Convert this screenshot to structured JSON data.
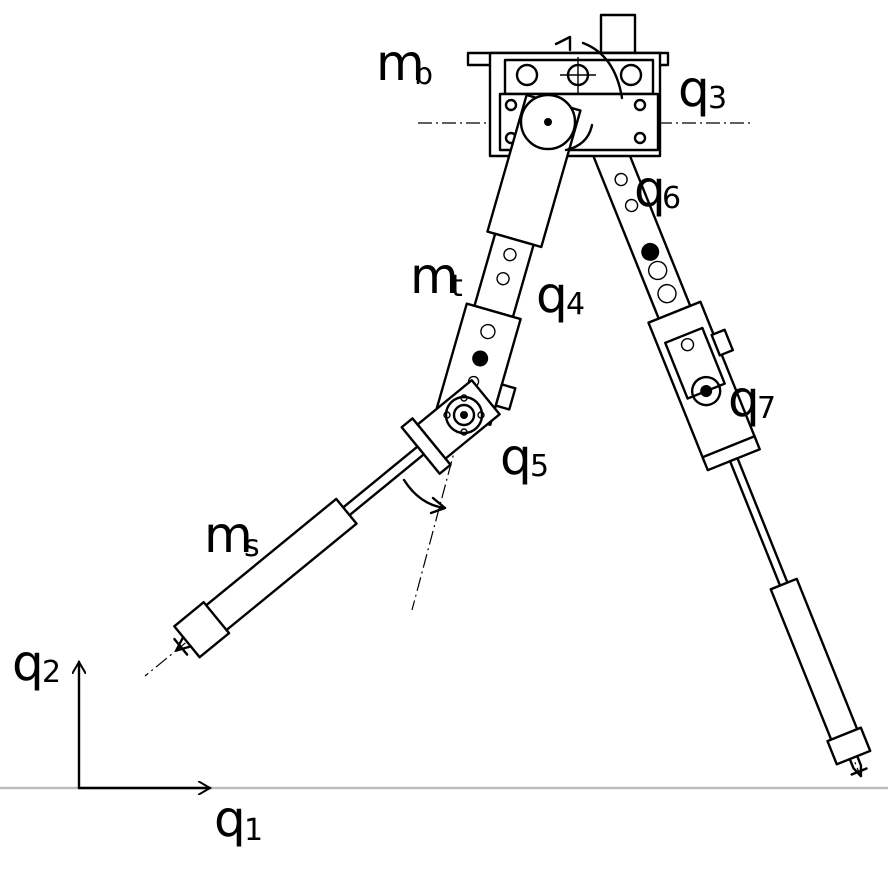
{
  "labels": {
    "m_b": {
      "main": "m",
      "sub": "b"
    },
    "m_t": {
      "main": "m",
      "sub": "t"
    },
    "m_s": {
      "main": "m",
      "sub": "s"
    },
    "q1": {
      "main": "q",
      "sub": "1"
    },
    "q2": {
      "main": "q",
      "sub": "2"
    },
    "q3": {
      "main": "q",
      "sub": "3"
    },
    "q4": {
      "main": "q",
      "sub": "4"
    },
    "q5": {
      "main": "q",
      "sub": "5"
    },
    "q6": {
      "main": "q",
      "sub": "6"
    },
    "q7": {
      "main": "q",
      "sub": "7"
    }
  },
  "colors": {
    "line": "#000000",
    "ground": "#bdbdbd",
    "background": "#ffffff"
  }
}
